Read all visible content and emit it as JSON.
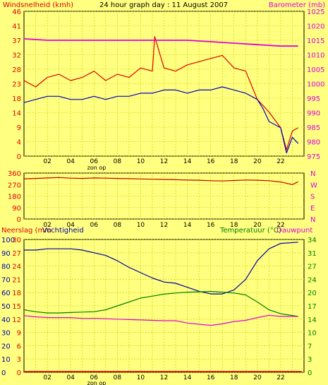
{
  "title": "24 hour graph day : 11 August 2007",
  "x_ticks": [
    "02",
    "04",
    "06",
    "08",
    "10",
    "12",
    "14",
    "16",
    "18",
    "20",
    "22"
  ],
  "sun_label": "zon op",
  "colors": {
    "background": "#ffff80",
    "grid": "#c8c800",
    "wind_avg": "#0000c8",
    "wind_gust": "#e00000",
    "barometer": "#e000e0",
    "direction": "#c80000",
    "humidity": "#0000a0",
    "temperature": "#008000",
    "dewpoint": "#e000e0",
    "rain": "#e00000",
    "left_axis": "#e00000",
    "right_axis": "#e000e0",
    "temp_axis": "#008000"
  },
  "chart_data": [
    {
      "type": "line",
      "name": "wind-barometer",
      "left_label": "Windsnelheid (kmh)",
      "right_label": "Barometer (mb)",
      "left_ticks": [
        "0",
        "4",
        "9",
        "14",
        "18",
        "23",
        "28",
        "32",
        "37",
        "41",
        "46"
      ],
      "right_ticks": [
        "975",
        "980",
        "985",
        "990",
        "995",
        "1000",
        "1005",
        "1010",
        "1015",
        "1020",
        "1025"
      ],
      "left_range": [
        0,
        46
      ],
      "right_range": [
        975,
        1025
      ],
      "series": [
        {
          "key": "gust",
          "hours": [
            0,
            1,
            2,
            3,
            4,
            5,
            6,
            7,
            8,
            9,
            10,
            11,
            11.2,
            12,
            13,
            14,
            15,
            16,
            17,
            18,
            19,
            20,
            21,
            22,
            22.5,
            23,
            23.5
          ],
          "values": [
            24,
            22,
            25,
            26,
            24,
            25,
            27,
            24,
            26,
            25,
            28,
            27,
            38,
            28,
            27,
            29,
            30,
            31,
            32,
            28,
            27,
            18,
            14,
            9,
            2,
            8,
            9
          ]
        },
        {
          "key": "avg",
          "hours": [
            0,
            1,
            2,
            3,
            4,
            5,
            6,
            7,
            8,
            9,
            10,
            11,
            12,
            13,
            14,
            15,
            16,
            17,
            18,
            19,
            20,
            20.5,
            21,
            22,
            22.5,
            23,
            23.5
          ],
          "values": [
            17,
            18,
            19,
            19,
            18,
            18,
            19,
            18,
            19,
            19,
            20,
            20,
            21,
            21,
            20,
            21,
            21,
            22,
            21,
            20,
            18,
            15,
            11,
            9,
            1,
            6,
            4
          ]
        },
        {
          "key": "baro",
          "hours": [
            0,
            2,
            4,
            6,
            8,
            10,
            12,
            14,
            16,
            18,
            20,
            22,
            23.5
          ],
          "values": [
            1015.5,
            1015,
            1015,
            1015,
            1015,
            1015,
            1015,
            1015,
            1014.5,
            1014,
            1013.5,
            1013,
            1013
          ]
        }
      ]
    },
    {
      "type": "line",
      "name": "wind-direction",
      "left_ticks": [
        "360",
        "270",
        "180",
        "90",
        "0"
      ],
      "right_ticks": [
        "N",
        "W",
        "S",
        "E",
        "N"
      ],
      "range": [
        0,
        360
      ],
      "series": [
        {
          "key": "dir",
          "hours": [
            0,
            1,
            2,
            3,
            4,
            5,
            6,
            7,
            8,
            9,
            10,
            11,
            12,
            13,
            14,
            15,
            16,
            17,
            18,
            19,
            20,
            21,
            22,
            23,
            23.5
          ],
          "values": [
            315,
            318,
            322,
            325,
            320,
            318,
            322,
            320,
            318,
            316,
            314,
            312,
            310,
            308,
            305,
            304,
            300,
            298,
            302,
            306,
            304,
            300,
            290,
            270,
            292
          ]
        }
      ]
    },
    {
      "type": "line",
      "name": "rain-humidity-temperature",
      "left_label_rain": "Neerslag (mm",
      "left_label_hum": "Vochtigheid",
      "right_label_temp": "Temperatuur (°C)",
      "right_label_dew": "Dauwpunt",
      "rain_ticks": [
        "0",
        "3",
        "6",
        "9",
        "12",
        "15",
        "18",
        "21",
        "24",
        "27",
        "30"
      ],
      "hum_ticks": [
        "0",
        "10",
        "20",
        "30",
        "40",
        "50",
        "60",
        "70",
        "80",
        "90",
        "100"
      ],
      "temp_ticks": [
        "0",
        "3",
        "7",
        "10",
        "14",
        "17",
        "20",
        "24",
        "27",
        "31",
        "34"
      ],
      "hum_range": [
        0,
        100
      ],
      "temp_range": [
        0,
        34
      ],
      "series": [
        {
          "key": "humidity",
          "axis": "hum",
          "hours": [
            0,
            1,
            2,
            3,
            4,
            5,
            6,
            7,
            8,
            9,
            10,
            11,
            12,
            13,
            14,
            15,
            16,
            17,
            18,
            19,
            20,
            21,
            22,
            23.5
          ],
          "values": [
            92,
            92,
            93,
            93,
            93,
            92,
            90,
            88,
            84,
            79,
            75,
            71,
            68,
            67,
            64,
            61,
            59,
            59,
            62,
            70,
            84,
            93,
            97,
            98
          ]
        },
        {
          "key": "temperature",
          "axis": "temp",
          "hours": [
            0,
            1,
            2,
            3,
            4,
            5,
            6,
            7,
            8,
            9,
            10,
            11,
            12,
            13,
            14,
            15,
            16,
            17,
            18,
            19,
            20,
            21,
            22,
            23.5
          ],
          "values": [
            16,
            15.5,
            15.2,
            15.2,
            15.3,
            15.4,
            15.5,
            16,
            17,
            18,
            19,
            19.5,
            20,
            20.3,
            20.5,
            20.6,
            20.7,
            20.5,
            20.3,
            19.8,
            18,
            16,
            15,
            14.3
          ]
        },
        {
          "key": "dewpoint",
          "axis": "temp",
          "hours": [
            0,
            1,
            2,
            3,
            4,
            5,
            6,
            7,
            8,
            9,
            10,
            11,
            12,
            13,
            14,
            15,
            16,
            17,
            18,
            19,
            20,
            21,
            22,
            23.5
          ],
          "values": [
            14.5,
            14.2,
            14,
            14,
            14,
            13.8,
            13.8,
            13.7,
            13.6,
            13.5,
            13.4,
            13.3,
            13.2,
            13.2,
            12.6,
            12.3,
            12,
            12.4,
            13,
            13.3,
            14,
            14.6,
            14.3,
            14.3
          ]
        },
        {
          "key": "rain",
          "axis": "rain",
          "hours": [
            0,
            23.8
          ],
          "values": [
            0,
            0
          ]
        }
      ]
    }
  ]
}
